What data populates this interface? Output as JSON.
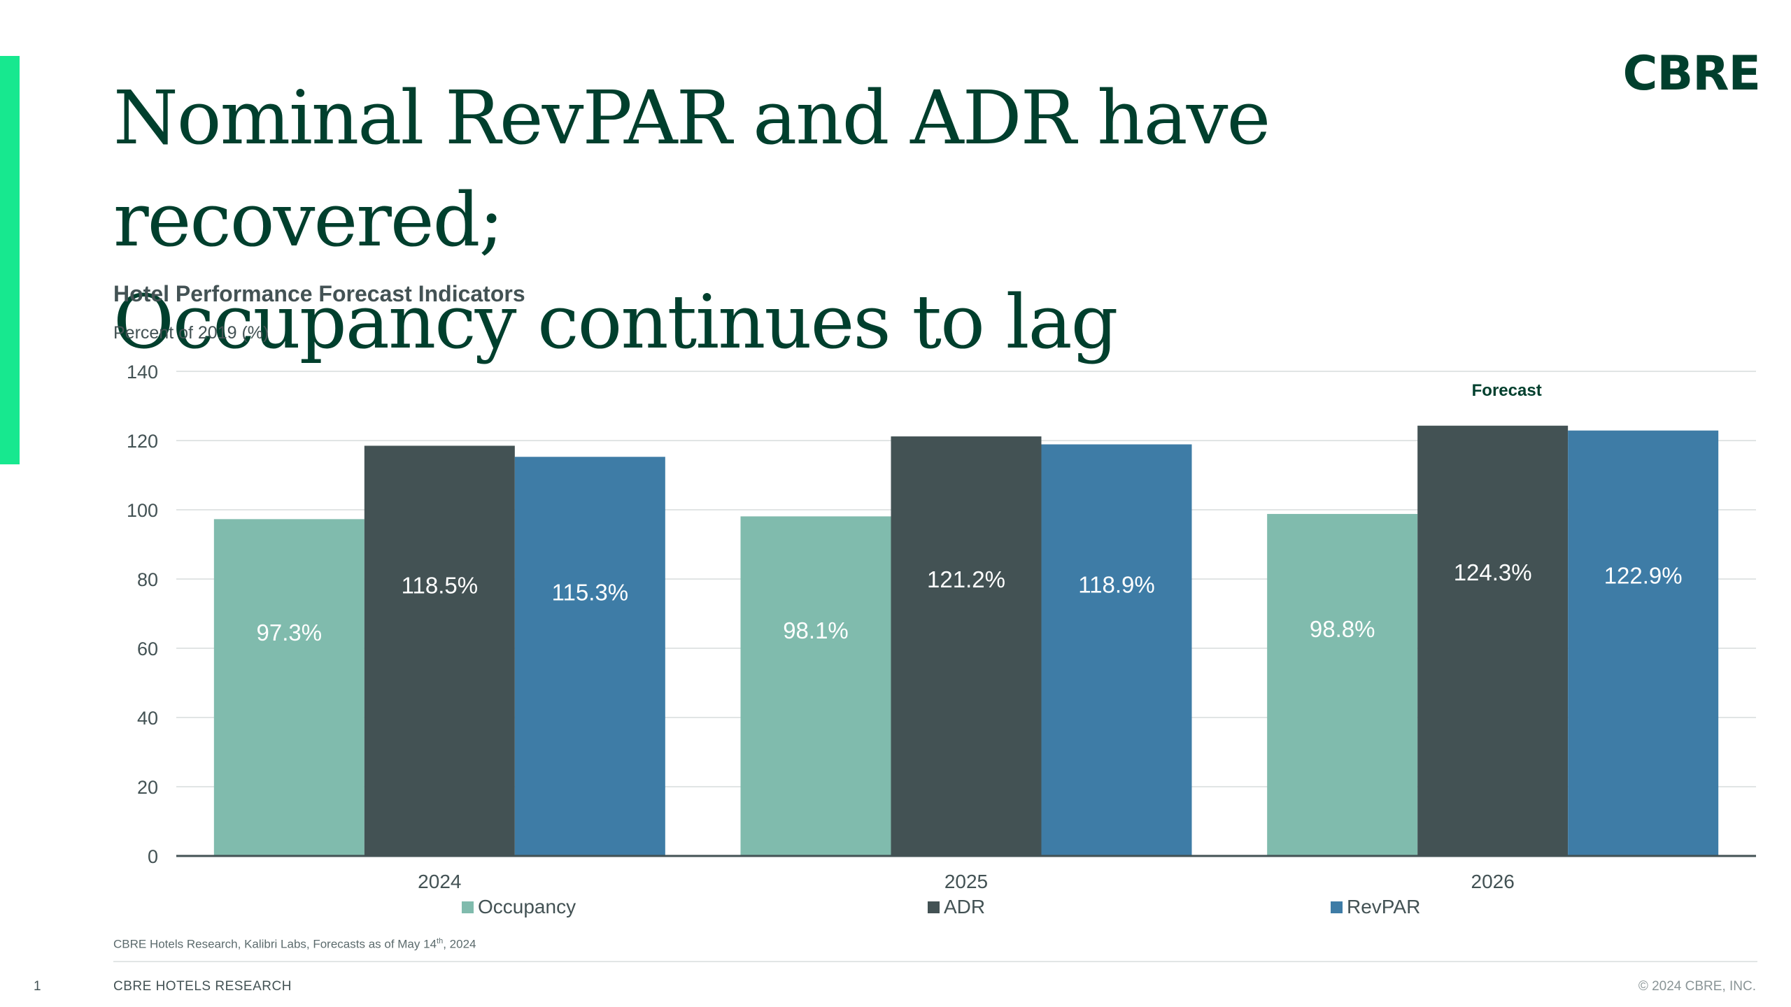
{
  "page": {
    "title_line1": "Nominal RevPAR and ADR have recovered;",
    "title_line2": "Occupancy continues to lag",
    "logo_text": "CBRE",
    "source": "CBRE Hotels Research, Kalibri Labs, Forecasts as of May 14",
    "source_sup": "th",
    "source_tail": ", 2024",
    "page_number": "1",
    "footer_left": "CBRE  HOTELS RESEARCH",
    "footer_right": "© 2024 CBRE, INC."
  },
  "colors": {
    "brand_green": "#003f2d",
    "accent": "#17e88f",
    "occupancy": "#80bbad",
    "adr": "#435254",
    "revpar": "#3e7ca6"
  },
  "chart_data": {
    "type": "bar",
    "title": "Hotel Performance Forecast Indicators",
    "ylabel": "Percent of 2019 (%)",
    "xlabel": "",
    "categories": [
      "2024",
      "2025",
      "2026"
    ],
    "series": [
      {
        "name": "Occupancy",
        "values": [
          97.3,
          98.1,
          98.8
        ],
        "labels": [
          "97.3%",
          "98.1%",
          "98.8%"
        ],
        "color": "#80bbad"
      },
      {
        "name": "ADR",
        "values": [
          118.5,
          121.2,
          124.3
        ],
        "labels": [
          "118.5%",
          "121.2%",
          "124.3%"
        ],
        "color": "#435254"
      },
      {
        "name": "RevPAR",
        "values": [
          115.3,
          118.9,
          122.9
        ],
        "labels": [
          "115.3%",
          "118.9%",
          "122.9%"
        ],
        "color": "#3e7ca6"
      }
    ],
    "ylim": [
      0,
      140
    ],
    "yticks": [
      0,
      20,
      40,
      60,
      80,
      100,
      120,
      140
    ],
    "grid": true,
    "legend": "bottom",
    "annotation": "Forecast"
  }
}
